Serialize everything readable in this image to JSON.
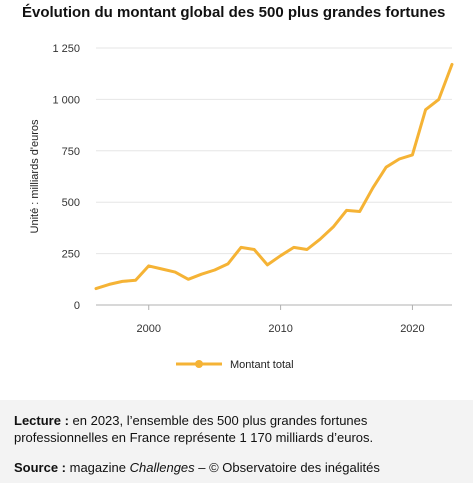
{
  "chart_data": {
    "type": "line",
    "title": "Évolution du montant global des 500 plus grandes fortunes",
    "ylabel": "Unité : milliards d'euros",
    "xlabel": "",
    "xlim": [
      1996,
      2023
    ],
    "ylim": [
      0,
      1250
    ],
    "x_ticks": [
      2000,
      2010,
      2020
    ],
    "y_ticks": [
      0,
      250,
      500,
      750,
      1000,
      1250
    ],
    "y_tick_labels": [
      "0",
      "250",
      "500",
      "750",
      "1 000",
      "1 250"
    ],
    "grid": "horizontal",
    "legend_position": "bottom",
    "series": [
      {
        "name": "Montant total",
        "color": "#f5b335",
        "x": [
          1996,
          1997,
          1998,
          1999,
          2000,
          2001,
          2002,
          2003,
          2004,
          2005,
          2006,
          2007,
          2008,
          2009,
          2010,
          2011,
          2012,
          2013,
          2014,
          2015,
          2016,
          2017,
          2018,
          2019,
          2020,
          2021,
          2022,
          2023
        ],
        "values": [
          80,
          100,
          115,
          120,
          190,
          175,
          160,
          125,
          150,
          170,
          200,
          280,
          270,
          195,
          240,
          280,
          270,
          320,
          380,
          460,
          455,
          570,
          670,
          710,
          730,
          950,
          1000,
          1170
        ]
      }
    ]
  },
  "notes": {
    "lecture_label": "Lecture :",
    "lecture_text_1": " en 2023, l’ensemble des 500 plus grandes fortunes",
    "lecture_text_2": "professionnelles en France représente 1 170 milliards d’euros.",
    "source_label": "Source :",
    "source_text_pre": " magazine ",
    "source_magazine": "Challenges",
    "source_text_post": " – © Observatoire des inégalités"
  },
  "colors": {
    "line": "#f5b335",
    "grid": "#e6e6e6",
    "notes_background": "#f3f3f3"
  }
}
